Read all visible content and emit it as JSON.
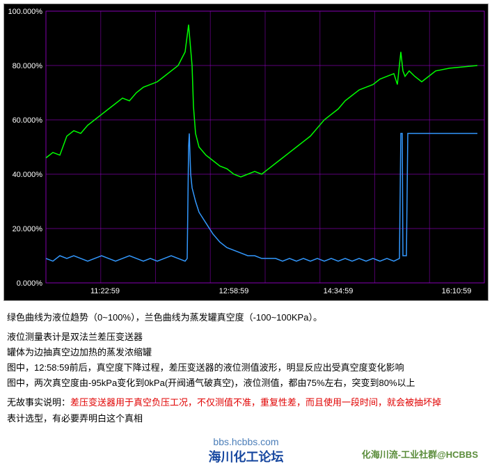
{
  "chart": {
    "type": "line",
    "background_color": "#000000",
    "grid_color": "#9900cc",
    "text_color": "#ffffff",
    "axis_fontsize": 11,
    "y_axis": {
      "min": 0,
      "max": 100,
      "step": 20,
      "unit": "%",
      "ticks": [
        "0.000%",
        "20.000%",
        "40.000%",
        "60.000%",
        "80.000%",
        "100.000%"
      ]
    },
    "x_axis": {
      "ticks": [
        "11:22:59",
        "12:58:59",
        "14:34:59",
        "16:10:59"
      ],
      "tick_positions": [
        145,
        330,
        480,
        650
      ]
    },
    "series": [
      {
        "name": "liquid-level",
        "color": "#00ff00",
        "line_width": 1.5,
        "points": [
          [
            60,
            46
          ],
          [
            70,
            48
          ],
          [
            80,
            47
          ],
          [
            90,
            54
          ],
          [
            100,
            56
          ],
          [
            110,
            55
          ],
          [
            120,
            58
          ],
          [
            130,
            60
          ],
          [
            140,
            62
          ],
          [
            150,
            64
          ],
          [
            160,
            66
          ],
          [
            170,
            68
          ],
          [
            180,
            67
          ],
          [
            190,
            70
          ],
          [
            200,
            72
          ],
          [
            210,
            73
          ],
          [
            220,
            74
          ],
          [
            230,
            76
          ],
          [
            240,
            78
          ],
          [
            250,
            80
          ],
          [
            260,
            85
          ],
          [
            265,
            95
          ],
          [
            270,
            80
          ],
          [
            272,
            65
          ],
          [
            275,
            55
          ],
          [
            280,
            50
          ],
          [
            290,
            47
          ],
          [
            300,
            45
          ],
          [
            310,
            43
          ],
          [
            320,
            42
          ],
          [
            330,
            40
          ],
          [
            340,
            39
          ],
          [
            350,
            40
          ],
          [
            360,
            41
          ],
          [
            370,
            40
          ],
          [
            380,
            42
          ],
          [
            390,
            44
          ],
          [
            400,
            46
          ],
          [
            410,
            48
          ],
          [
            420,
            50
          ],
          [
            430,
            52
          ],
          [
            440,
            54
          ],
          [
            450,
            57
          ],
          [
            460,
            60
          ],
          [
            470,
            62
          ],
          [
            480,
            64
          ],
          [
            490,
            67
          ],
          [
            500,
            69
          ],
          [
            510,
            71
          ],
          [
            520,
            72
          ],
          [
            530,
            73
          ],
          [
            540,
            75
          ],
          [
            550,
            76
          ],
          [
            560,
            77
          ],
          [
            565,
            73
          ],
          [
            570,
            85
          ],
          [
            573,
            78
          ],
          [
            576,
            76
          ],
          [
            582,
            78
          ],
          [
            590,
            76
          ],
          [
            600,
            74
          ],
          [
            610,
            76
          ],
          [
            620,
            78
          ],
          [
            640,
            79
          ],
          [
            680,
            80
          ]
        ]
      },
      {
        "name": "vacuum",
        "color": "#3399ff",
        "line_width": 1.5,
        "points": [
          [
            60,
            9
          ],
          [
            70,
            8
          ],
          [
            80,
            10
          ],
          [
            90,
            9
          ],
          [
            100,
            10
          ],
          [
            110,
            9
          ],
          [
            120,
            8
          ],
          [
            130,
            9
          ],
          [
            140,
            10
          ],
          [
            150,
            9
          ],
          [
            160,
            8
          ],
          [
            170,
            9
          ],
          [
            180,
            10
          ],
          [
            190,
            9
          ],
          [
            200,
            8
          ],
          [
            210,
            9
          ],
          [
            220,
            8
          ],
          [
            230,
            9
          ],
          [
            240,
            10
          ],
          [
            250,
            9
          ],
          [
            260,
            8
          ],
          [
            263,
            9
          ],
          [
            265,
            50
          ],
          [
            266,
            55
          ],
          [
            268,
            40
          ],
          [
            270,
            35
          ],
          [
            275,
            30
          ],
          [
            280,
            26
          ],
          [
            290,
            22
          ],
          [
            300,
            18
          ],
          [
            310,
            15
          ],
          [
            320,
            13
          ],
          [
            330,
            12
          ],
          [
            340,
            11
          ],
          [
            350,
            10
          ],
          [
            360,
            10
          ],
          [
            370,
            9
          ],
          [
            380,
            9
          ],
          [
            390,
            9
          ],
          [
            400,
            8
          ],
          [
            410,
            9
          ],
          [
            420,
            8
          ],
          [
            430,
            9
          ],
          [
            440,
            8
          ],
          [
            450,
            9
          ],
          [
            460,
            8
          ],
          [
            470,
            9
          ],
          [
            480,
            8
          ],
          [
            490,
            9
          ],
          [
            500,
            8
          ],
          [
            510,
            9
          ],
          [
            520,
            8
          ],
          [
            530,
            9
          ],
          [
            540,
            8
          ],
          [
            550,
            9
          ],
          [
            560,
            8
          ],
          [
            568,
            9
          ],
          [
            570,
            55
          ],
          [
            572,
            55
          ],
          [
            573,
            10
          ],
          [
            576,
            10
          ],
          [
            578,
            10
          ],
          [
            580,
            55
          ],
          [
            582,
            55
          ],
          [
            585,
            55
          ],
          [
            590,
            55
          ],
          [
            600,
            55
          ],
          [
            620,
            55
          ],
          [
            660,
            55
          ],
          [
            680,
            55
          ]
        ]
      }
    ]
  },
  "description": {
    "line1": "绿色曲线为液位趋势（0~100%），兰色曲线为蒸发罐真空度（-100~100KPa）。",
    "line2": "液位测量表计是双法兰差压变送器",
    "line3": "罐体为边抽真空边加热的蒸发浓缩罐",
    "line4": "图中，12:58:59前后，真空度下降过程，差压变送器的液位测值波形，明显反应出受真空度变化影响",
    "line5": "图中，两次真空度由-95kPa变化到0kPa(开阀通气破真空)，液位测值，都由75%左右，突变到80%以上",
    "line6a": "无故事实说明：",
    "line6b": "差压变送器用于真空负压工况，不仅测值不准，重复性差，而且使用一段时间，就会被抽坏掉",
    "line7": "表计选型，有必要弄明白这个真相"
  },
  "footer": {
    "url": "bbs.hcbbs.com",
    "forum": "海川化工论坛",
    "tag": "化海川流-工业社群@HCBBS"
  }
}
